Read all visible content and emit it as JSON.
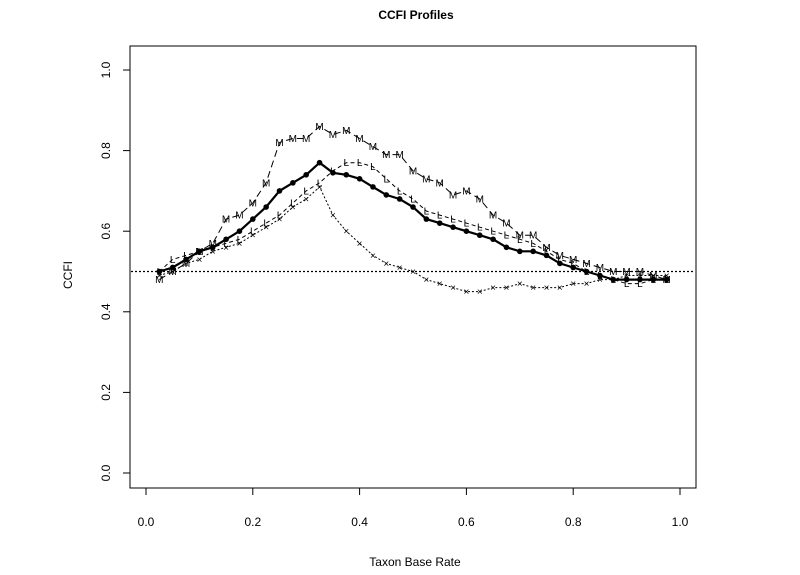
{
  "chart_data": {
    "type": "line",
    "title": "CCFI Profiles",
    "xlabel": "Taxon Base Rate",
    "ylabel": "CCFI",
    "xlim": [
      0.0,
      1.0
    ],
    "ylim": [
      0.0,
      1.0
    ],
    "xticks": [
      "0.0",
      "0.2",
      "0.4",
      "0.6",
      "0.8",
      "1.0"
    ],
    "yticks": [
      "0.0",
      "0.2",
      "0.4",
      "0.6",
      "0.8",
      "1.0"
    ],
    "grid": false,
    "legend": "none",
    "reference_line": 0.5,
    "x": [
      0.025,
      0.05,
      0.075,
      0.1,
      0.125,
      0.15,
      0.175,
      0.2,
      0.225,
      0.25,
      0.275,
      0.3,
      0.325,
      0.35,
      0.375,
      0.4,
      0.425,
      0.45,
      0.475,
      0.5,
      0.525,
      0.55,
      0.575,
      0.6,
      0.625,
      0.65,
      0.675,
      0.7,
      0.725,
      0.75,
      0.775,
      0.8,
      0.825,
      0.85,
      0.875,
      0.9,
      0.925,
      0.95,
      0.975
    ],
    "series": [
      {
        "style": "solid-bold",
        "marker": "●",
        "values": [
          0.5,
          0.51,
          0.53,
          0.55,
          0.56,
          0.58,
          0.6,
          0.63,
          0.66,
          0.7,
          0.72,
          0.74,
          0.77,
          0.745,
          0.74,
          0.73,
          0.71,
          0.69,
          0.68,
          0.66,
          0.63,
          0.62,
          0.61,
          0.6,
          0.59,
          0.58,
          0.56,
          0.55,
          0.55,
          0.54,
          0.52,
          0.51,
          0.5,
          0.49,
          0.48,
          0.48,
          0.48,
          0.48,
          0.48
        ]
      },
      {
        "style": "long-dash",
        "marker": "M",
        "values": [
          0.48,
          0.5,
          0.52,
          0.55,
          0.57,
          0.63,
          0.64,
          0.67,
          0.72,
          0.82,
          0.83,
          0.83,
          0.86,
          0.84,
          0.85,
          0.83,
          0.81,
          0.79,
          0.79,
          0.75,
          0.73,
          0.72,
          0.69,
          0.7,
          0.68,
          0.64,
          0.62,
          0.59,
          0.59,
          0.56,
          0.54,
          0.53,
          0.52,
          0.51,
          0.5,
          0.5,
          0.5,
          0.49,
          0.48
        ]
      },
      {
        "style": "dash",
        "marker": "L",
        "values": [
          0.5,
          0.53,
          0.54,
          0.55,
          0.56,
          0.57,
          0.58,
          0.6,
          0.62,
          0.64,
          0.67,
          0.7,
          0.72,
          0.75,
          0.77,
          0.77,
          0.76,
          0.73,
          0.7,
          0.68,
          0.65,
          0.64,
          0.63,
          0.62,
          0.61,
          0.6,
          0.59,
          0.58,
          0.57,
          0.55,
          0.53,
          0.52,
          0.5,
          0.49,
          0.48,
          0.47,
          0.47,
          0.48,
          0.48
        ]
      },
      {
        "style": "dotted",
        "marker": "×",
        "values": [
          0.49,
          0.5,
          0.52,
          0.53,
          0.55,
          0.56,
          0.57,
          0.59,
          0.61,
          0.63,
          0.66,
          0.68,
          0.71,
          0.64,
          0.6,
          0.57,
          0.54,
          0.52,
          0.51,
          0.5,
          0.48,
          0.47,
          0.46,
          0.45,
          0.45,
          0.46,
          0.46,
          0.47,
          0.46,
          0.46,
          0.46,
          0.47,
          0.47,
          0.48,
          0.48,
          0.49,
          0.49,
          0.49,
          0.49
        ]
      }
    ]
  }
}
